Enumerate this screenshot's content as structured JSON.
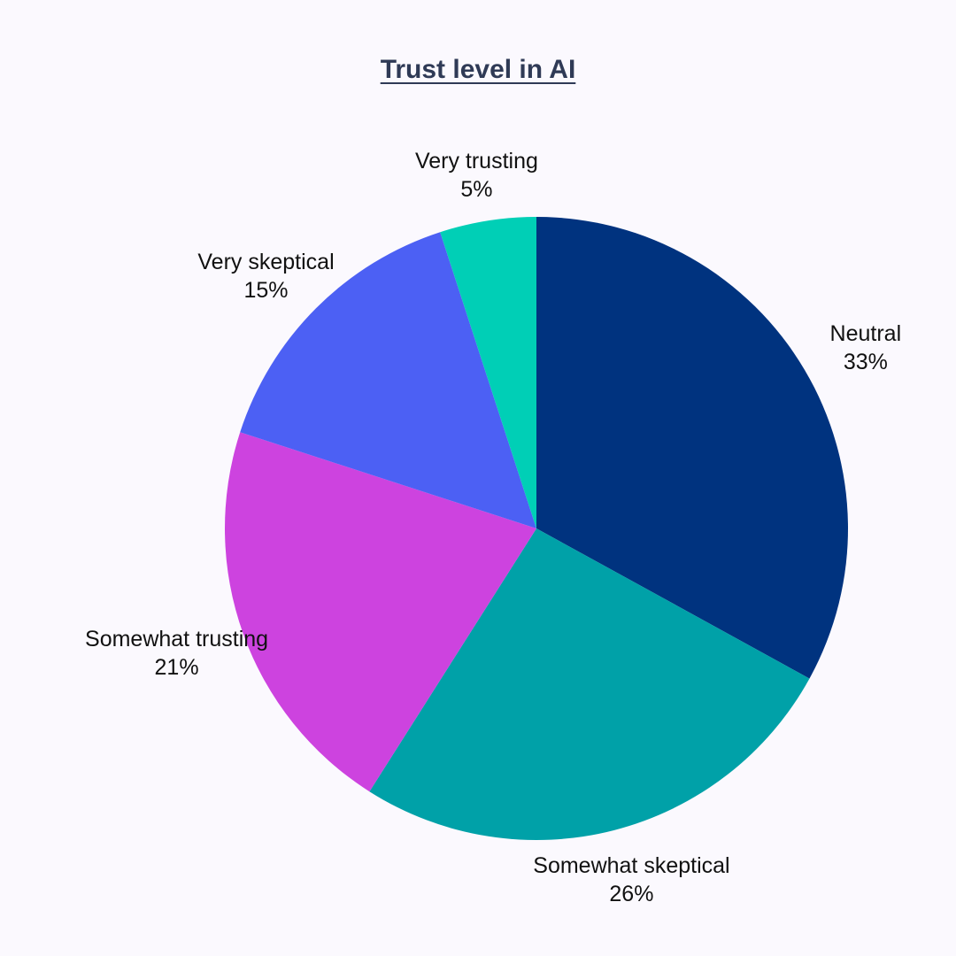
{
  "chart_data": {
    "type": "pie",
    "title": "Trust level in AI",
    "slices": [
      {
        "label": "Neutral",
        "value": 33,
        "display": "33%",
        "color": "#00337f"
      },
      {
        "label": "Somewhat skeptical",
        "value": 26,
        "display": "26%",
        "color": "#00a1a8"
      },
      {
        "label": "Somewhat trusting",
        "value": 21,
        "display": "21%",
        "color": "#cd43df"
      },
      {
        "label": "Very skeptical",
        "value": 15,
        "display": "15%",
        "color": "#4c60f4"
      },
      {
        "label": "Very trusting",
        "value": 5,
        "display": "5%",
        "color": "#00cfb6"
      }
    ],
    "start": "12 o'clock",
    "direction": "clockwise",
    "legend": "none",
    "labels": "outside"
  }
}
